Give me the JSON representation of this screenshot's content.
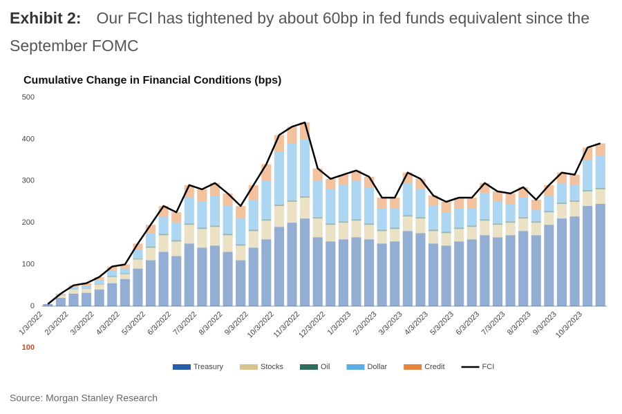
{
  "header": {
    "label": "Exhibit 2:",
    "title": "Our FCI has tightened by about 60bp in fed funds equivalent since the September FOMC"
  },
  "source": "Source: Morgan Stanley Research",
  "chart_data": {
    "type": "bar",
    "stacked": true,
    "title": "Cumulative Change in Financial Conditions (bps)",
    "categories": [
      "1/3/2022",
      null,
      "2/3/2022",
      null,
      "3/3/2022",
      null,
      "4/3/2022",
      null,
      "5/3/2022",
      null,
      "6/3/2022",
      null,
      "7/3/2022",
      null,
      "8/3/2022",
      null,
      "9/3/2022",
      null,
      "10/3/2022",
      null,
      "11/3/2022",
      null,
      "12/3/2022",
      null,
      "1/3/2023",
      null,
      "2/3/2023",
      null,
      "3/3/2023",
      null,
      "4/3/2023",
      null,
      "5/3/2023",
      null,
      "6/3/2023",
      null,
      "7/3/2023",
      null,
      "8/3/2023",
      null,
      "9/3/2023",
      null,
      "10/3/2023",
      null
    ],
    "series": [
      {
        "name": "Treasury",
        "color": "#2a5ea8",
        "values": [
          5,
          20,
          30,
          32,
          40,
          55,
          65,
          90,
          110,
          130,
          120,
          150,
          140,
          145,
          130,
          110,
          140,
          160,
          190,
          200,
          210,
          165,
          155,
          160,
          165,
          160,
          150,
          155,
          180,
          175,
          150,
          145,
          155,
          160,
          170,
          165,
          170,
          180,
          170,
          195,
          210,
          215,
          240,
          245
        ]
      },
      {
        "name": "Stocks",
        "color": "#d8c58e",
        "values": [
          0,
          5,
          10,
          10,
          12,
          15,
          12,
          22,
          30,
          40,
          35,
          45,
          45,
          45,
          40,
          35,
          40,
          45,
          50,
          50,
          50,
          45,
          40,
          40,
          40,
          35,
          30,
          30,
          35,
          35,
          30,
          30,
          30,
          30,
          35,
          30,
          30,
          30,
          30,
          30,
          35,
          35,
          35,
          35
        ]
      },
      {
        "name": "Oil",
        "color": "#2f6e5c",
        "values": [
          0,
          0,
          1,
          1,
          1,
          2,
          2,
          2,
          3,
          3,
          3,
          3,
          3,
          3,
          3,
          3,
          3,
          3,
          3,
          3,
          3,
          3,
          3,
          3,
          3,
          3,
          3,
          3,
          3,
          3,
          3,
          3,
          3,
          3,
          3,
          3,
          3,
          3,
          3,
          3,
          3,
          3,
          3,
          3
        ]
      },
      {
        "name": "Dollar",
        "color": "#5aaee3",
        "values": [
          0,
          2,
          4,
          6,
          9,
          13,
          11,
          21,
          32,
          42,
          42,
          62,
          62,
          72,
          67,
          62,
          72,
          92,
          127,
          137,
          137,
          87,
          82,
          87,
          92,
          87,
          52,
          47,
          77,
          67,
          57,
          47,
          47,
          42,
          62,
          52,
          42,
          47,
          27,
          37,
          47,
          37,
          72,
          77
        ]
      },
      {
        "name": "Credit",
        "color": "#e5843b",
        "values": [
          0,
          3,
          5,
          6,
          8,
          10,
          10,
          15,
          20,
          25,
          25,
          30,
          30,
          30,
          30,
          30,
          35,
          40,
          40,
          40,
          40,
          30,
          25,
          25,
          25,
          25,
          25,
          25,
          25,
          25,
          25,
          25,
          25,
          25,
          25,
          25,
          25,
          25,
          25,
          25,
          25,
          25,
          30,
          30
        ]
      },
      {
        "name": "FCI",
        "type": "line",
        "color": "#000000",
        "values": [
          5,
          30,
          50,
          55,
          70,
          95,
          100,
          150,
          195,
          240,
          225,
          290,
          280,
          295,
          270,
          240,
          290,
          340,
          410,
          430,
          440,
          330,
          305,
          315,
          325,
          310,
          260,
          260,
          320,
          305,
          265,
          250,
          260,
          260,
          295,
          275,
          270,
          285,
          255,
          290,
          320,
          315,
          380,
          390
        ]
      }
    ],
    "ylim": [
      0,
      500
    ],
    "yticks": [
      0,
      100,
      200,
      300,
      400,
      500
    ],
    "y_min_label": "100",
    "y_min_label_color": "#c8461e",
    "grid": false,
    "legend": "bottom"
  }
}
